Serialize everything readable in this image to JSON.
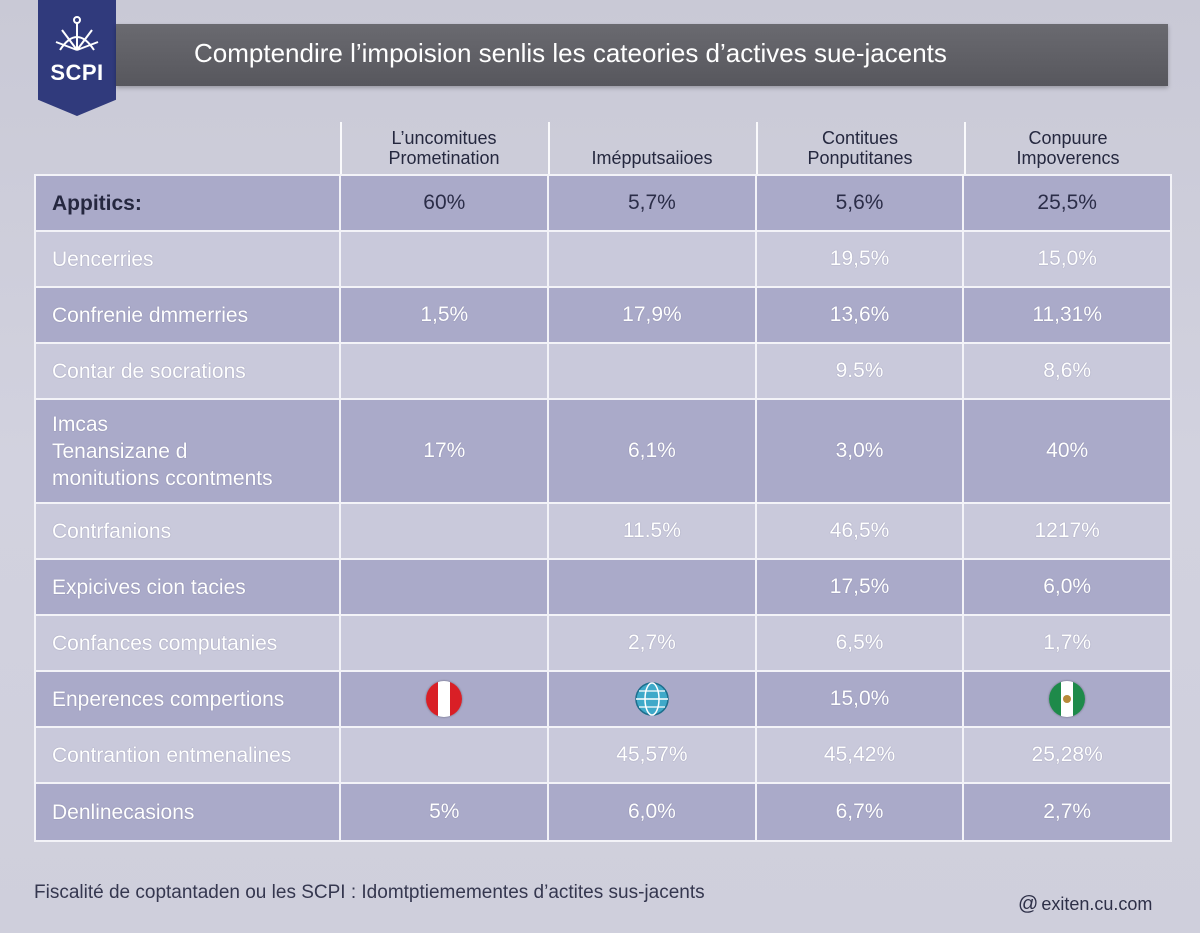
{
  "logo": {
    "text": "SCPI"
  },
  "title": "Comptendire l’impoision senlis les cateories d’actives sue-jacents",
  "columns": [
    "",
    "L’uncomitues\nPrometination",
    "Imépputsaiioes",
    "Contitues\nPonputitanes",
    "Conpuure\nImpoverencs"
  ],
  "rows": [
    {
      "label": "Appitics:",
      "values": [
        "60%",
        "5,7%",
        "5,6%",
        "25,5%"
      ]
    },
    {
      "label": "Uencerries",
      "values": [
        "",
        "",
        "19,5%",
        "15,0%"
      ]
    },
    {
      "label": "Confrenie dmmerries",
      "values": [
        "1,5%",
        "17,9%",
        "13,6%",
        "11,31%"
      ]
    },
    {
      "label": "Contar de socrations",
      "values": [
        "",
        "",
        "9.5%",
        "8,6%"
      ]
    },
    {
      "label": "Imcas\nTenansizane d\nmonitutions ccontments",
      "values": [
        "17%",
        "6,1%",
        "3,0%",
        "40%"
      ]
    },
    {
      "label": "Contrfanions",
      "values": [
        "",
        "11.5%",
        "46,5%",
        "1217%"
      ]
    },
    {
      "label": "Expicives cion tacies",
      "values": [
        "",
        "",
        "17,5%",
        "6,0%"
      ]
    },
    {
      "label": "Confances computanies",
      "values": [
        "",
        "2,7%",
        "6,5%",
        "1,7%"
      ]
    },
    {
      "label": "Enperences compertions",
      "values": [
        "",
        "",
        "15,0%",
        ""
      ],
      "icons": [
        "flag-peru-icon",
        "globe-icon",
        "",
        "flag-mexico-icon"
      ]
    },
    {
      "label": "Contrantion entmenalines",
      "values": [
        "",
        "45,57%",
        "45,42%",
        "25,28%"
      ]
    },
    {
      "label": "Denlinecasions",
      "values": [
        "5%",
        "6,0%",
        "6,7%",
        "2,7%"
      ]
    }
  ],
  "footer": "Fiscalité de coptantaden ou les SCPI : Idomtptiemementes d’actites sus-jacents",
  "watermark": "exiten.cu.com",
  "colors": {
    "badge": "#303a7c",
    "title_bar": "#5f5f65",
    "row_dark": "#aaaac9",
    "row_light": "#c9c9db",
    "background": "#cfcfdc"
  }
}
